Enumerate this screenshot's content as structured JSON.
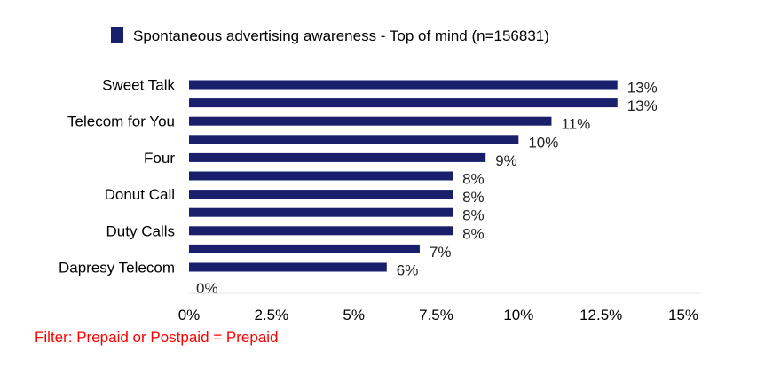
{
  "chart_data": {
    "type": "bar",
    "orientation": "horizontal",
    "legend": {
      "label": "Spontaneous advertising awareness - Top of mind (n=156831)",
      "placement": "top-center"
    },
    "series": [
      {
        "name": "Spontaneous advertising awareness - Top of mind (n=156831)",
        "values": [
          13,
          13,
          11,
          10,
          9,
          8,
          8,
          8,
          8,
          7,
          6,
          0
        ]
      }
    ],
    "value_labels": [
      "13%",
      "13%",
      "11%",
      "10%",
      "9%",
      "8%",
      "8%",
      "8%",
      "8%",
      "7%",
      "6%",
      "0%"
    ],
    "category_labels": [
      {
        "row": 0,
        "text": "Sweet Talk"
      },
      {
        "row": 2,
        "text": "Telecom for You"
      },
      {
        "row": 4,
        "text": "Four"
      },
      {
        "row": 6,
        "text": "Donut Call"
      },
      {
        "row": 8,
        "text": "Duty Calls"
      },
      {
        "row": 10,
        "text": "Dapresy Telecom"
      }
    ],
    "xlim": [
      0,
      15
    ],
    "x_ticks": [
      0,
      2.5,
      5,
      7.5,
      10,
      12.5,
      15
    ],
    "x_tick_labels": [
      "0%",
      "2.5%",
      "5%",
      "7.5%",
      "10%",
      "12.5%",
      "15%"
    ],
    "grid": false,
    "colors": {
      "bar": "#1a1f6b"
    }
  },
  "footer": {
    "filter_text": "Filter: Prepaid or Postpaid = Prepaid"
  }
}
